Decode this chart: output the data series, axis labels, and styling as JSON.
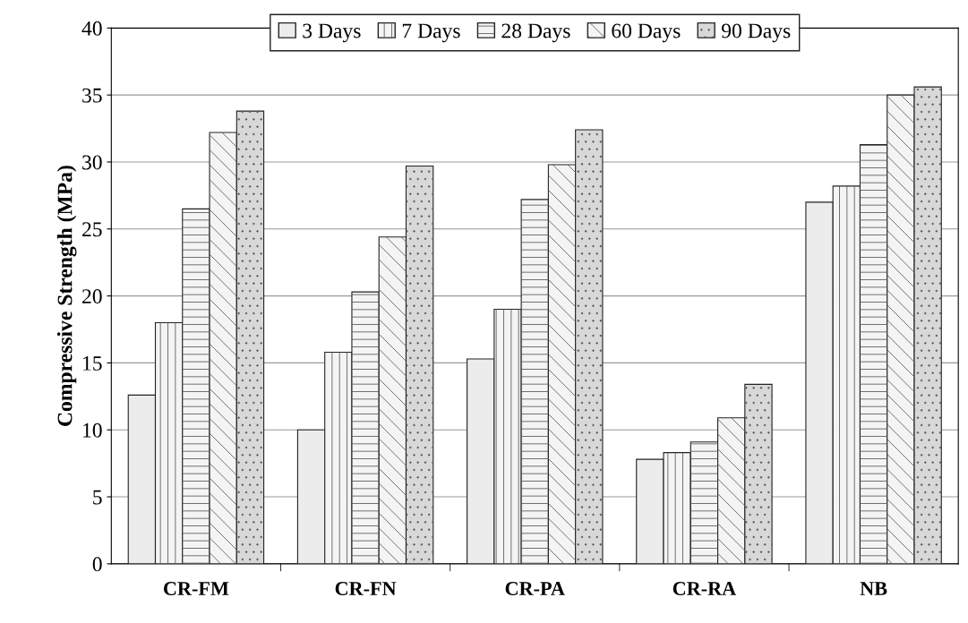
{
  "chart_data": {
    "type": "bar",
    "ylabel": "Compressive Strength (MPa)",
    "categories": [
      "CR-FM",
      "CR-FN",
      "CR-PA",
      "CR-RA",
      "NB"
    ],
    "series": [
      {
        "name": "3 Days",
        "color": "#ececec",
        "values": [
          12.6,
          10.0,
          15.3,
          7.8,
          27.0
        ]
      },
      {
        "name": "7 Days",
        "color": "#f4f4f4",
        "values": [
          18.0,
          15.8,
          19.0,
          8.3,
          28.2
        ]
      },
      {
        "name": "28 Days",
        "color": "#f4f4f4",
        "values": [
          26.5,
          20.3,
          27.2,
          9.1,
          31.3
        ]
      },
      {
        "name": "60 Days",
        "color": "#f4f4f4",
        "values": [
          32.2,
          24.4,
          29.8,
          10.9,
          35.0
        ]
      },
      {
        "name": "90 Days",
        "color": "#d8d8d8",
        "values": [
          33.8,
          29.7,
          32.4,
          13.4,
          35.6
        ]
      }
    ],
    "ylim": [
      0,
      40
    ],
    "yticks": [
      0,
      5,
      10,
      15,
      20,
      25,
      30,
      35,
      40
    ],
    "grid": "y",
    "legend": "top"
  }
}
